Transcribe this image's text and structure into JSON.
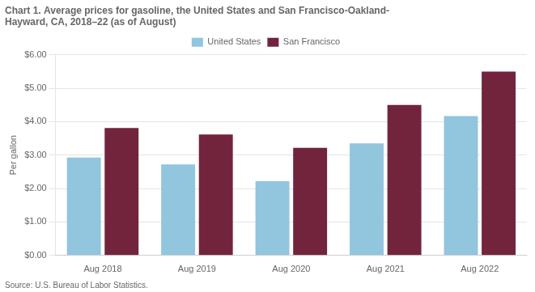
{
  "chart_data": {
    "type": "bar",
    "title": [
      "Chart 1. Average prices for gasoline, the United States and San Francisco-Oakland-",
      "Hayward, CA, 2018–22 (as of August)"
    ],
    "source": "Source: U.S. Bureau of Labor Statistics.",
    "ylabel": "Per gallon",
    "categories": [
      "Aug 2018",
      "Aug 2019",
      "Aug 2020",
      "Aug 2021",
      "Aug 2022"
    ],
    "series": [
      {
        "name": "United States",
        "color": "#92C5DE",
        "values": [
          2.93,
          2.72,
          2.22,
          3.35,
          4.17
        ]
      },
      {
        "name": "San Francisco",
        "color": "#72243D",
        "values": [
          3.81,
          3.62,
          3.22,
          4.5,
          5.5
        ]
      }
    ],
    "ylim": [
      0,
      6.0
    ],
    "yticks": [
      {
        "value": 0.0,
        "label": "$0.00"
      },
      {
        "value": 1.0,
        "label": "$1.00"
      },
      {
        "value": 2.0,
        "label": "$2.00"
      },
      {
        "value": 3.0,
        "label": "$3.00"
      },
      {
        "value": 4.0,
        "label": "$4.00"
      },
      {
        "value": 5.0,
        "label": "$5.00"
      },
      {
        "value": 6.0,
        "label": "$6.00"
      }
    ],
    "grid": true,
    "legend": "top"
  }
}
